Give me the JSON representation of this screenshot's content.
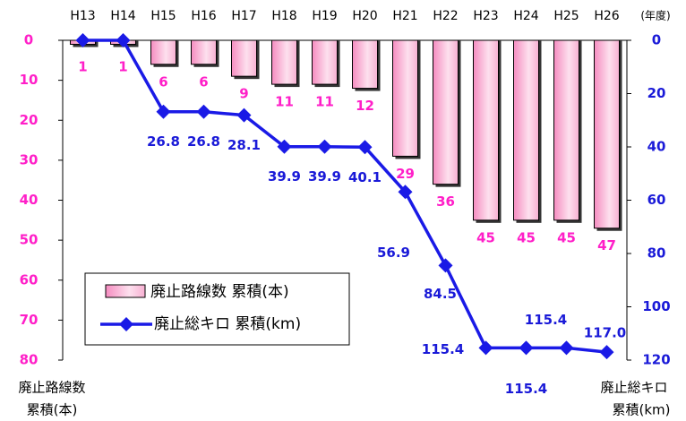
{
  "chart_data": {
    "type": "bar_line",
    "annotation": "(年度)",
    "y_label": [
      "廃止路線数",
      "累積(本)"
    ],
    "y2_label": [
      "廃止総キロ",
      "累積(km)"
    ],
    "categories": [
      "H13",
      "H14",
      "H15",
      "H16",
      "H17",
      "H18",
      "H19",
      "H20",
      "H21",
      "H22",
      "H23",
      "H24",
      "H25",
      "H26"
    ],
    "series": [
      {
        "name": "廃止路線数 累積(本)",
        "type": "bar",
        "color": "#f7a8d0",
        "values": [
          1,
          1,
          6,
          6,
          9,
          11,
          11,
          12,
          29,
          36,
          45,
          45,
          45,
          47
        ]
      },
      {
        "name": "廃止総キロ 累積(km)",
        "type": "line",
        "axis": "y2",
        "color": "#1a1ae6",
        "values": [
          0,
          0,
          26.8,
          26.8,
          28.1,
          39.9,
          39.9,
          40.1,
          56.9,
          84.5,
          115.4,
          115.4,
          115.4,
          117
        ],
        "value_labels": [
          null,
          null,
          "26.8",
          "26.8",
          "28.1",
          "39.9",
          "39.9",
          "40.1",
          "56.9",
          "84.5",
          "115.4",
          "115.4",
          "115.4",
          "117.0"
        ]
      }
    ],
    "ylim": [
      0,
      80
    ],
    "yticks": [
      0,
      10,
      20,
      30,
      40,
      50,
      60,
      70,
      80
    ],
    "y_inverted": true,
    "y2lim": [
      0,
      120
    ],
    "y2ticks": [
      0,
      20,
      40,
      60,
      80,
      100,
      120
    ],
    "y2_inverted": true
  }
}
